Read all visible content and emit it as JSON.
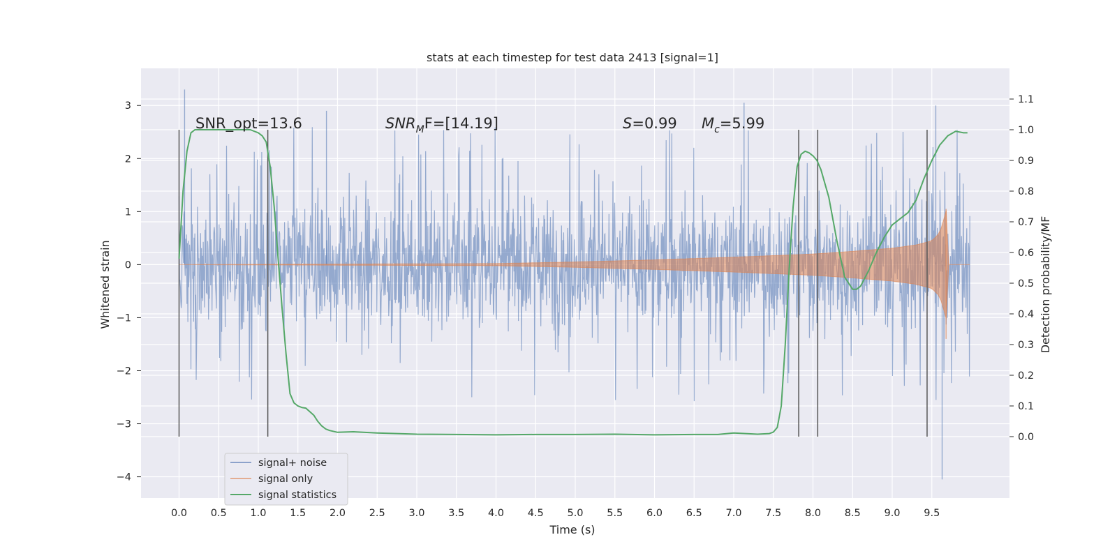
{
  "chart_data": {
    "type": "line",
    "title": "stats at each timestep for test data 2413 [signal=1]",
    "xlabel": "Time (s)",
    "ylabel": "Whitened strain",
    "y2label": "Detection probability/MF",
    "xlim": [
      -0.48,
      10.48
    ],
    "ylim": [
      -4.4,
      3.7
    ],
    "y2lim": [
      -0.2,
      1.2
    ],
    "xticks": [
      "0.0",
      "0.5",
      "1.0",
      "1.5",
      "2.0",
      "2.5",
      "3.0",
      "3.5",
      "4.0",
      "4.5",
      "5.0",
      "5.5",
      "6.0",
      "6.5",
      "7.0",
      "7.5",
      "8.0",
      "8.5",
      "9.0",
      "9.5"
    ],
    "yticks": [
      "3",
      "2",
      "1",
      "0",
      "−1",
      "−2",
      "−3",
      "−4"
    ],
    "y2ticks": [
      "1.1",
      "1.0",
      "0.9",
      "0.8",
      "0.7",
      "0.6",
      "0.5",
      "0.4",
      "0.3",
      "0.2",
      "0.1",
      "0.0"
    ],
    "grid": true,
    "legend_position": "lower-left",
    "colors": {
      "background": "#eaeaf2",
      "signal_noise": "#4c72b0",
      "signal_only": "#dd8452",
      "statistics": "#55a868",
      "vlines": "#555555"
    },
    "annotations": {
      "snr_opt": "SNR_opt=13.6",
      "snr_mf_a": "SNR",
      "snr_mf_b": "M",
      "snr_mf_c": "F=[14.19]",
      "s_a": "S",
      "s_b": "=0.99",
      "mc_a": "M",
      "mc_b": "c",
      "mc_c": "=5.99"
    },
    "vlines_x": [
      0.0,
      1.12,
      7.82,
      8.06,
      9.44
    ],
    "vlines_y2": [
      0.0,
      1.0
    ],
    "series": [
      {
        "name": "signal+ noise",
        "axis": "left",
        "description_note": "dense noise, sampled",
        "x_range": [
          0.0,
          9.98
        ],
        "peaks_x": [
          0.07,
          1.86,
          7.13,
          9.55,
          9.63
        ],
        "peaks_y": [
          3.3,
          2.9,
          3.05,
          3.0,
          -4.05
        ]
      },
      {
        "name": "signal only",
        "axis": "left",
        "chirp_end_x": 9.68,
        "envelope_x": [
          0.0,
          4.0,
          5.0,
          6.0,
          7.0,
          7.5,
          8.0,
          8.5,
          9.0,
          9.3,
          9.5,
          9.6,
          9.66,
          9.68,
          9.7
        ],
        "envelope_y": [
          0.0,
          0.02,
          0.05,
          0.09,
          0.14,
          0.17,
          0.2,
          0.25,
          0.31,
          0.37,
          0.45,
          0.6,
          0.9,
          1.05,
          0.0
        ]
      },
      {
        "name": "signal statistics",
        "axis": "right",
        "x": [
          0.0,
          0.05,
          0.1,
          0.15,
          0.2,
          0.3,
          0.5,
          0.7,
          0.9,
          1.0,
          1.05,
          1.1,
          1.15,
          1.2,
          1.25,
          1.3,
          1.35,
          1.4,
          1.45,
          1.5,
          1.55,
          1.6,
          1.7,
          1.75,
          1.8,
          1.85,
          1.9,
          2.0,
          2.2,
          2.5,
          3.0,
          3.5,
          4.0,
          4.5,
          5.0,
          5.5,
          6.0,
          6.5,
          6.8,
          7.0,
          7.3,
          7.45,
          7.5,
          7.55,
          7.6,
          7.65,
          7.7,
          7.75,
          7.8,
          7.85,
          7.9,
          7.95,
          8.0,
          8.05,
          8.1,
          8.2,
          8.3,
          8.4,
          8.5,
          8.55,
          8.6,
          8.7,
          8.8,
          8.9,
          9.0,
          9.1,
          9.2,
          9.3,
          9.4,
          9.5,
          9.6,
          9.7,
          9.8,
          9.9,
          9.95
        ],
        "y": [
          0.58,
          0.8,
          0.93,
          0.99,
          1.0,
          1.0,
          1.0,
          1.0,
          1.0,
          0.99,
          0.98,
          0.96,
          0.88,
          0.75,
          0.58,
          0.42,
          0.27,
          0.14,
          0.11,
          0.1,
          0.095,
          0.093,
          0.07,
          0.05,
          0.035,
          0.025,
          0.02,
          0.014,
          0.016,
          0.012,
          0.008,
          0.007,
          0.006,
          0.007,
          0.007,
          0.008,
          0.006,
          0.007,
          0.007,
          0.012,
          0.008,
          0.01,
          0.015,
          0.03,
          0.1,
          0.3,
          0.55,
          0.75,
          0.88,
          0.92,
          0.93,
          0.925,
          0.915,
          0.9,
          0.87,
          0.78,
          0.64,
          0.52,
          0.48,
          0.48,
          0.49,
          0.54,
          0.6,
          0.65,
          0.69,
          0.71,
          0.73,
          0.77,
          0.84,
          0.9,
          0.95,
          0.98,
          0.995,
          0.99,
          0.99
        ]
      }
    ]
  }
}
